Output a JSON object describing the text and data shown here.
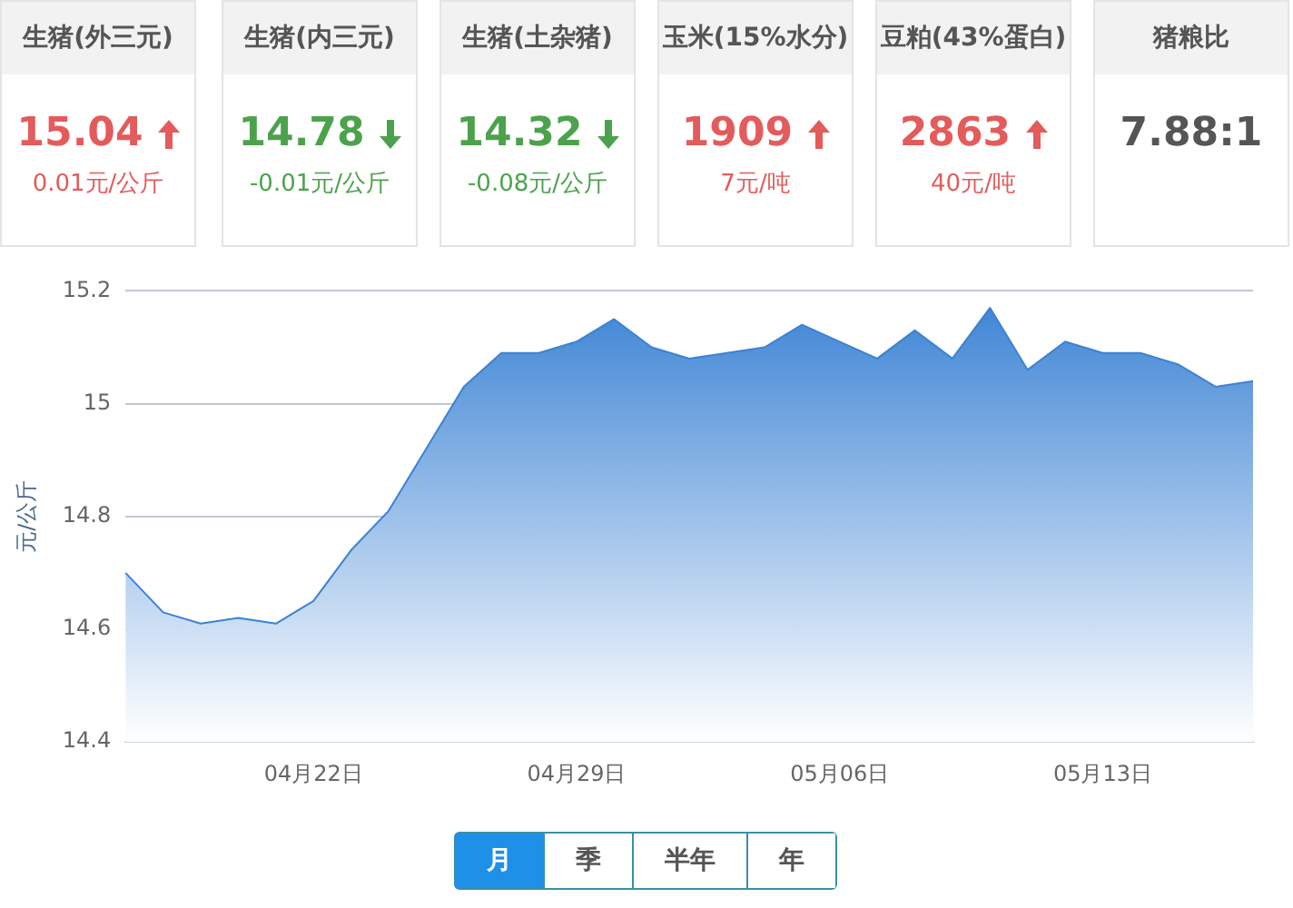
{
  "chart_data": [
    {
      "type": "other",
      "categories": [
        "生猪(外三元)",
        "生猪(内三元)",
        "生猪(土杂猪)",
        "玉米(15%水分)",
        "豆粕(43%蛋白)",
        "猪粮比"
      ],
      "annotations": [
        "15.04",
        "0.01元/公斤",
        "14.78",
        "-0.01元/公斤",
        "14.32",
        "-0.08元/公斤",
        "1909",
        "7元/吨",
        "2863",
        "40元/吨",
        "7.88:1"
      ]
    },
    {
      "type": "area",
      "ylabel": "元/公斤",
      "categories": [
        null,
        null,
        null,
        null,
        null,
        "04月22日",
        null,
        null,
        null,
        null,
        null,
        null,
        "04月29日",
        null,
        null,
        null,
        null,
        null,
        null,
        "05月06日",
        null,
        null,
        null,
        null,
        null,
        null,
        "05月13日",
        null,
        null,
        null,
        null
      ],
      "series": [
        {
          "color": "#3a82d4",
          "values": [
            14.7,
            14.63,
            14.61,
            14.62,
            14.61,
            14.65,
            14.74,
            14.81,
            14.92,
            15.03,
            15.09,
            15.09,
            15.11,
            15.15,
            15.1,
            15.08,
            15.09,
            15.1,
            15.14,
            15.11,
            15.08,
            15.13,
            15.08,
            15.17,
            15.06,
            15.11,
            15.09,
            15.09,
            15.07,
            15.03,
            15.04
          ]
        }
      ],
      "ylim": [
        14.4,
        15.2
      ],
      "yticks": [
        14.4,
        14.6,
        14.8,
        15,
        15.2
      ],
      "grid": "y",
      "annotations": [
        "月",
        "季",
        "半年",
        "年"
      ]
    }
  ]
}
